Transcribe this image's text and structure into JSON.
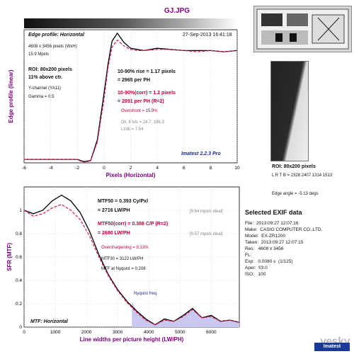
{
  "window": {
    "file_title": "GJ.JPG"
  },
  "colors": {
    "measured": "#000000",
    "corrected": "#d0204a",
    "nyquist_fill": "#c8c8f0",
    "axis_label": "#800080"
  },
  "edge_panel": {
    "title": "Edge profile: Horizontal",
    "date": "27-Sep-2013 16:41:18",
    "size_line": "4608 x 3456 pixels (WxH)",
    "mpxls": "15.9 Mpxls",
    "roi": "ROI: 80x200 pixels",
    "above": "11% above ctr.",
    "channel": "Y-channel  (YA11)",
    "gamma": "Gamma = 0.5",
    "rise1": "10-90% rise = 1.17 pixels",
    "rise2": "= 2965 per PH",
    "corr1": "10-90%(corr) = 1.2 pixels",
    "corr2": "= 2891 per PH  (R=2)",
    "overshoot": "Overshoot = 15.9%",
    "dk_lt": "Dk, lt lvls = 24.7, 186.3",
    "lt_dk": "Lt/dk = 7.54",
    "version": "Imatest 2.2.3 Pro",
    "ylabel": "Edge profile (linear)",
    "xlabel": "Pixels (Horizontal)"
  },
  "mtf_panel": {
    "mtf50": "MTF50 = 0.393 Cy/Pxl",
    "mtf50_lw": "= 2716 LW/PH",
    "ideal1": "[9.64 mpxls ideal]",
    "mtf50c": "MTF50(corr) = 0.388 C/P  (R=2)",
    "mtf50c_lw": "= 2680 LW/PH",
    "ideal2": "[9.57 mpxls ideal]",
    "oversharp": "Oversharpening = 8.13%",
    "mtf30": "MTF30 = 3122 LW/PH",
    "nyq": "MTF at Nyquist = 0.208",
    "nyq_label": "Nyquist freq.",
    "title": "MTF: Horizontal",
    "ylabel": "SFR (MTF)",
    "xlabel": "Line widths per picture height (LW/PH)"
  },
  "right_panel": {
    "roi_title": "ROI: 80x200 pixels",
    "lrtb": "L R T B = 2328 2407  1314 1513",
    "edge_angle": "Edge angle = -5.13 degs",
    "exif_title": "Selected EXIF data",
    "exif": [
      "File:  2013:09:27 12:07:16",
      "Make:  CASIO COMPUTER CO.,LTD.",
      "Model:  EX-ZR1200",
      "Taken:  2013:09:27 12:07:15",
      "Res:   4608 x 3456",
      "FL:",
      "Exp:   0.0080 s  (1/125)",
      "Aper:  f/3.0",
      "ISO:   100"
    ],
    "watermark": "yesky",
    "logo": "Imatest"
  },
  "chart_data": [
    {
      "type": "line",
      "title": "Edge profile: Horizontal",
      "xlabel": "Pixels (Horizontal)",
      "ylabel": "Edge profile (linear)",
      "xlim": [
        -6,
        10
      ],
      "ylim": [
        0,
        1.15
      ],
      "xticks": [
        -6,
        -4,
        -2,
        0,
        2,
        4,
        6,
        8,
        10
      ],
      "grid": true,
      "series": [
        {
          "x": [
            -6,
            -4,
            -2,
            -1.5,
            -1,
            -0.5,
            0,
            0.3,
            0.6,
            1,
            1.5,
            2,
            2.5,
            3,
            4,
            5,
            6,
            7,
            8,
            9,
            10
          ],
          "values": [
            0.03,
            0.03,
            0.03,
            0.01,
            0.02,
            0.2,
            0.6,
            0.85,
            1.05,
            1.12,
            1.04,
            0.99,
            0.98,
            0.97,
            0.99,
            0.98,
            0.97,
            0.97,
            0.97,
            0.96,
            0.97
          ]
        },
        {
          "x": [
            -6,
            -4,
            -2,
            -1.5,
            -1,
            -0.5,
            0,
            0.3,
            0.6,
            1,
            1.5,
            2,
            2.5,
            3,
            4,
            5,
            6,
            7,
            8,
            9,
            10
          ],
          "values": [
            0.03,
            0.03,
            0.03,
            0.0,
            0.02,
            0.18,
            0.55,
            0.82,
            1.0,
            1.06,
            1.01,
            0.98,
            0.97,
            0.97,
            0.98,
            0.98,
            0.97,
            0.96,
            0.97,
            0.96,
            0.97
          ]
        }
      ]
    },
    {
      "type": "line",
      "title": "MTF: Horizontal",
      "xlabel": "Line widths per picture height (LW/PH)",
      "ylabel": "SFR (MTF)",
      "xlim": [
        0,
        6900
      ],
      "ylim": [
        0,
        1.2
      ],
      "xticks": [
        0,
        1000,
        2000,
        3000,
        4000,
        5000,
        6000
      ],
      "yticks": [
        0,
        0.2,
        0.4,
        0.6,
        0.8,
        1
      ],
      "grid": true,
      "nyquist": 3456,
      "series": [
        {
          "x": [
            0,
            300,
            600,
            900,
            1200,
            1500,
            1800,
            2100,
            2400,
            2700,
            3000,
            3300,
            3600,
            3900,
            4200,
            4500,
            4800,
            5100,
            5400,
            5700,
            6000,
            6300,
            6600,
            6900
          ],
          "values": [
            1.0,
            0.97,
            1.0,
            1.08,
            1.13,
            1.08,
            0.98,
            0.82,
            0.62,
            0.45,
            0.32,
            0.22,
            0.14,
            0.07,
            0.02,
            0.07,
            0.05,
            0.1,
            0.16,
            0.08,
            0.1,
            0.05,
            0.06,
            0.04
          ]
        },
        {
          "x": [
            0,
            300,
            600,
            900,
            1200,
            1500,
            1800,
            2100,
            2400,
            2700,
            3000,
            3300,
            3600,
            3900,
            4200,
            4500,
            4800,
            5100,
            5400,
            5700,
            6000,
            6300,
            6600,
            6900
          ],
          "values": [
            1.0,
            0.95,
            0.97,
            1.02,
            1.05,
            1.0,
            0.92,
            0.78,
            0.6,
            0.44,
            0.31,
            0.21,
            0.13,
            0.06,
            0.02,
            0.06,
            0.05,
            0.09,
            0.15,
            0.08,
            0.09,
            0.05,
            0.06,
            0.04
          ]
        }
      ]
    }
  ]
}
